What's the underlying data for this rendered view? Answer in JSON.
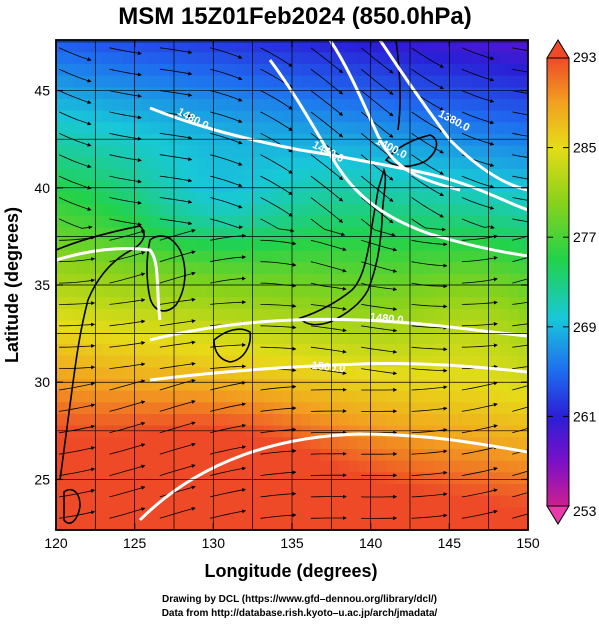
{
  "chart_data": {
    "type": "heatmap",
    "title": "MSM 15Z01Feb2024 (850.0hPa)",
    "xlabel": "Longitude (degrees)",
    "ylabel": "Latitude  (degrees)",
    "xlim": [
      120,
      150
    ],
    "ylim": [
      22.4,
      47.6
    ],
    "x_ticks": [
      "120",
      "125",
      "130",
      "135",
      "140",
      "145",
      "150"
    ],
    "y_ticks": [
      "25",
      "30",
      "35",
      "40",
      "45"
    ],
    "colorbar": {
      "range": [
        253,
        293
      ],
      "ticks": [
        "293",
        "285",
        "277",
        "269",
        "261",
        "253"
      ],
      "colors": [
        "#cc2090",
        "#7a10c8",
        "#2a1fd6",
        "#1f6cf0",
        "#18c8d8",
        "#22d24a",
        "#8ad21a",
        "#e6dc18",
        "#f2a020",
        "#ee4a28"
      ]
    },
    "contour_labels": [
      {
        "text": "1480.0",
        "lon": 128.6,
        "lat": 43.4
      },
      {
        "text": "1440.0",
        "lon": 137.2,
        "lat": 41.7
      },
      {
        "text": "1400.0",
        "lon": 141.2,
        "lat": 41.9
      },
      {
        "text": "1380.0",
        "lon": 145.2,
        "lat": 43.3
      },
      {
        "text": "1480.0",
        "lon": 141.0,
        "lat": 33.1
      },
      {
        "text": "1500.0",
        "lon": 137.3,
        "lat": 30.6
      }
    ],
    "grid": true
  },
  "credits": {
    "line1": "Drawing by DCL (https://www.gfd–dennou.org/library/dcl/)",
    "line2": "Data from http://database.rish.kyoto–u.ac.jp/arch/jmadata/"
  }
}
